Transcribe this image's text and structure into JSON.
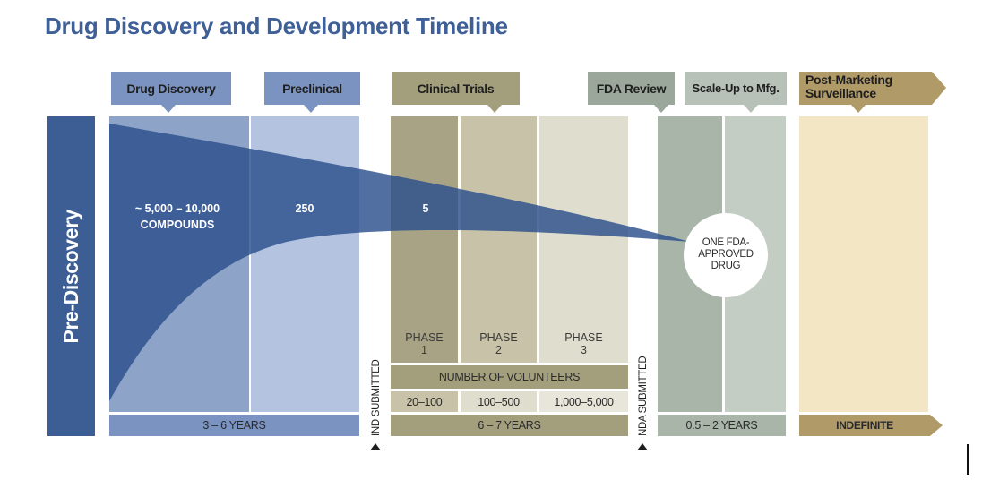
{
  "title": "Drug Discovery and Development Timeline",
  "pre_discovery": "Pre-Discovery",
  "stages": {
    "drug_discovery": "Drug Discovery",
    "preclinical": "Preclinical",
    "clinical_trials": "Clinical Trials",
    "fda_review": "FDA Review",
    "scale_up": "Scale-Up to Mfg.",
    "post_marketing_1": "Post-Marketing",
    "post_marketing_2": "Surveillance"
  },
  "counts": {
    "compounds_1": "~ 5,000 – 10,000",
    "compounds_2": "COMPOUNDS",
    "preclinical": "250",
    "clinical": "5",
    "approved_1": "ONE FDA-",
    "approved_2": "APPROVED",
    "approved_3": "DRUG"
  },
  "phases": [
    {
      "line1": "PHASE",
      "line2": "1",
      "volunteers": "20–100"
    },
    {
      "line1": "PHASE",
      "line2": "2",
      "volunteers": "100–500"
    },
    {
      "line1": "PHASE",
      "line2": "3",
      "volunteers": "1,000–5,000"
    }
  ],
  "volunteers_label": "NUMBER OF VOLUNTEERS",
  "milestones": {
    "ind": "IND SUBMITTED",
    "nda": "NDA SUBMITTED"
  },
  "durations": {
    "discovery_preclinical": "3 – 6 YEARS",
    "clinical": "6 – 7 YEARS",
    "review_scale": "0.5 – 2 YEARS",
    "post_marketing": "INDEFINITE"
  },
  "colors": {
    "title": "#3f5f97",
    "pre_discovery": "#3d5d95",
    "discovery_col": "#8ea3c8",
    "preclinical_col": "#b3c3e0",
    "clinical_1": "#a7a384",
    "clinical_2": "#c8c3a8",
    "clinical_3": "#dfddcd",
    "review_col": "#a8b5a8",
    "scale_col": "#c4cdc4",
    "post_col": "#f3e6c4",
    "funnel": "#2c4f8c"
  }
}
